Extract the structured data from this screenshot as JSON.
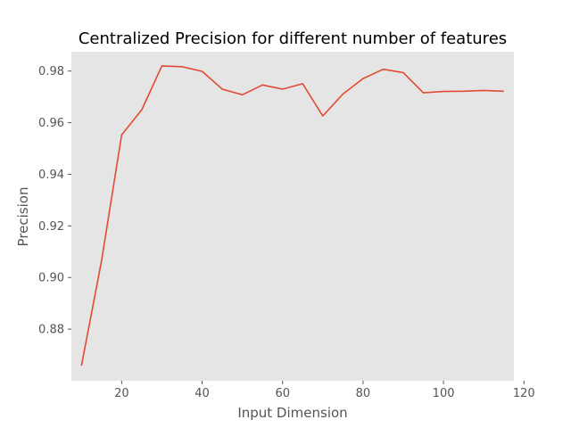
{
  "chart_data": {
    "type": "line",
    "title": "Centralized Precision for different number of features",
    "xlabel": "Input Dimension",
    "ylabel": "Precision",
    "xlim": [
      7.5,
      117.5
    ],
    "ylim": [
      0.86,
      0.9875
    ],
    "xticks": [
      20,
      40,
      60,
      80,
      100,
      120
    ],
    "yticks": [
      0.88,
      0.9,
      0.92,
      0.94,
      0.96,
      0.98
    ],
    "xtick_labels": [
      "20",
      "40",
      "60",
      "80",
      "100",
      "120"
    ],
    "ytick_labels": [
      "0.88",
      "0.90",
      "0.92",
      "0.94",
      "0.96",
      "0.98"
    ],
    "grid": false,
    "legend": "none",
    "colors": {
      "background": "#e5e5e5",
      "line": "#e24a33"
    },
    "series": [
      {
        "x": [
          10,
          15,
          20,
          25,
          30,
          35,
          40,
          45,
          50,
          55,
          60,
          65,
          70,
          75,
          80,
          85,
          90,
          95,
          100,
          105,
          110,
          115
        ],
        "y": [
          0.8658,
          0.9065,
          0.9553,
          0.965,
          0.982,
          0.9817,
          0.9799,
          0.973,
          0.9708,
          0.9746,
          0.973,
          0.9751,
          0.9626,
          0.9711,
          0.9771,
          0.9807,
          0.9794,
          0.9716,
          0.9721,
          0.9722,
          0.9725,
          0.9722
        ]
      }
    ]
  }
}
